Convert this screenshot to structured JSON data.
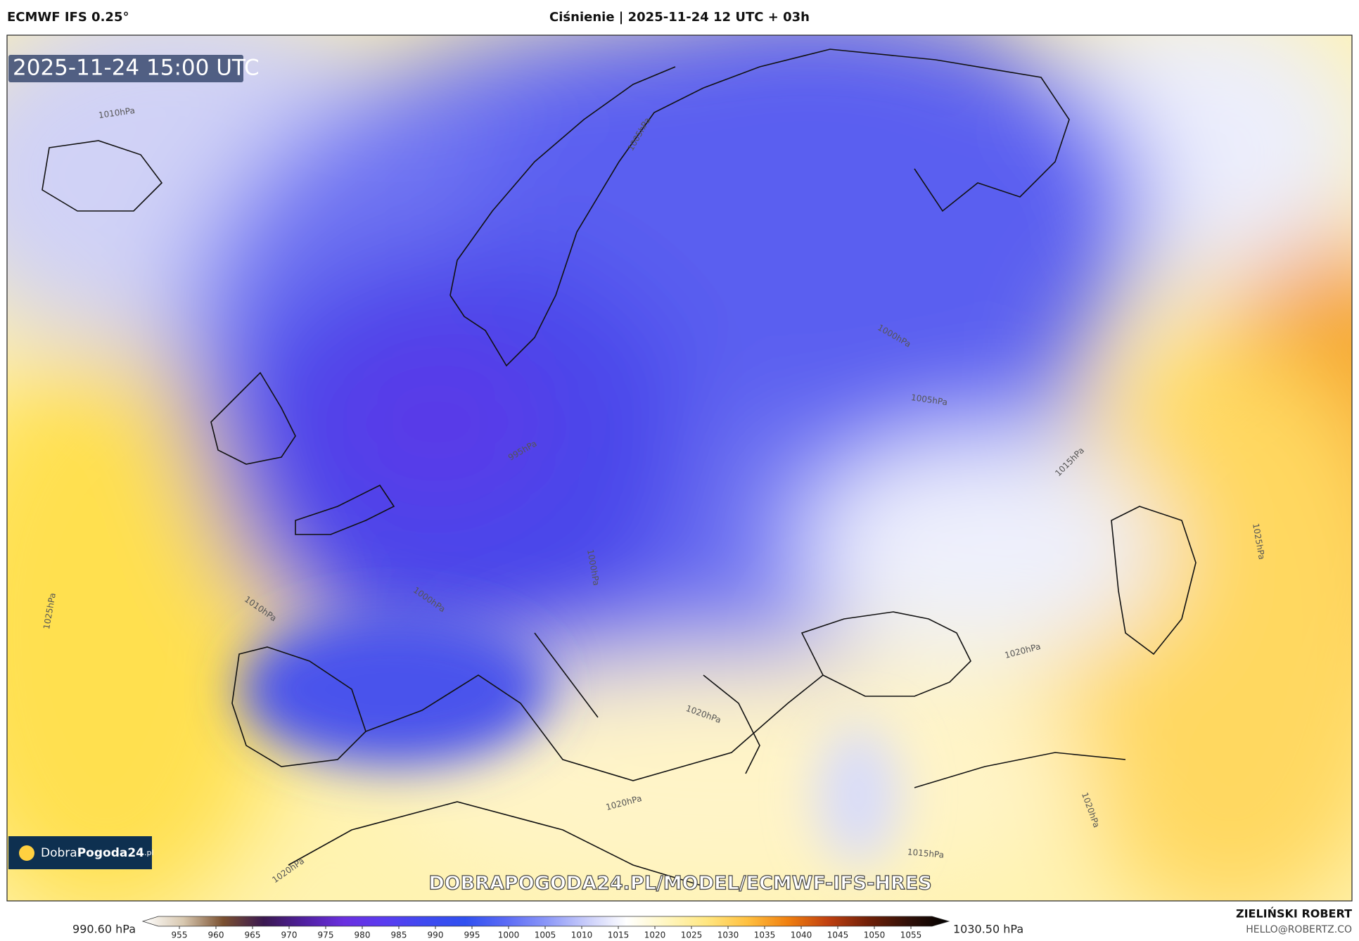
{
  "header": {
    "model": "ECMWF IFS 0.25°",
    "title": "Ciśnienie | 2025-11-24 12 UTC + 03h"
  },
  "map": {
    "timestamp": "2025-11-24 15:00 UTC",
    "isobar_labels": [
      "1010hPa",
      "1005hPa",
      "1000hPa",
      "1005hPa",
      "995hPa",
      "1015hPa",
      "1025hPa",
      "1000hPa",
      "1010hPa",
      "1000hPa",
      "1025hPa",
      "1020hPa",
      "1020hPa",
      "1020hPa",
      "1020hPa",
      "1015hPa",
      "1020hPa"
    ],
    "watermark": "DOBRAPOGODA24.PL/MODEL/ECMWF-IFS-HRES",
    "logo": {
      "part1": "Dobra",
      "part2": "Pogoda",
      "part3": "24",
      "part4": ".pl"
    }
  },
  "colorbar": {
    "min_label": "990.60 hPa",
    "max_label": "1030.50 hPa",
    "ticks": [
      955,
      960,
      965,
      970,
      975,
      980,
      985,
      990,
      995,
      1000,
      1005,
      1010,
      1015,
      1020,
      1025,
      1030,
      1035,
      1040,
      1045,
      1050,
      1055
    ],
    "colors": [
      "#ffffff",
      "#d8c8b0",
      "#7a5030",
      "#3a1850",
      "#5020a0",
      "#6a30e0",
      "#5a3cf0",
      "#3f4af0",
      "#3050f0",
      "#5a6af5",
      "#8a96f8",
      "#c8ccfa",
      "#ffffff",
      "#fff6c0",
      "#ffe680",
      "#ffc040",
      "#f08010",
      "#c04010",
      "#702008",
      "#301008",
      "#000000"
    ]
  },
  "footer": {
    "author": "ZIELIŃSKI ROBERT",
    "email": "HELLO@ROBERTZ.CO"
  }
}
